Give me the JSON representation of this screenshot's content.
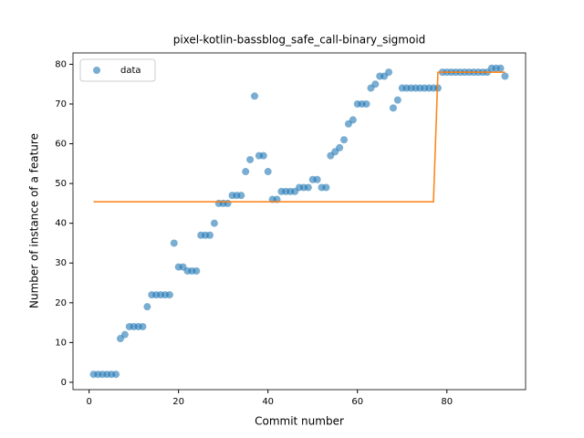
{
  "chart_data": {
    "type": "scatter",
    "title": "pixel-kotlin-bassblog_safe_call-binary_sigmoid",
    "x_label": "Commit number",
    "y_label": "Number of instance of a feature",
    "xlim": [
      -3.6,
      97.6
    ],
    "ylim": [
      -1.85,
      82.85
    ],
    "xticks": [
      0,
      20,
      40,
      60,
      80
    ],
    "yticks": [
      0,
      10,
      20,
      30,
      40,
      50,
      60,
      70,
      80
    ],
    "legend": "upper left",
    "series": [
      {
        "name": "data",
        "type": "scatter",
        "color": "#1f77b4",
        "x": [
          1,
          2,
          3,
          4,
          5,
          6,
          7,
          8,
          9,
          10,
          11,
          12,
          13,
          14,
          15,
          16,
          17,
          18,
          19,
          20,
          21,
          22,
          23,
          24,
          25,
          26,
          27,
          28,
          29,
          30,
          31,
          32,
          33,
          34,
          35,
          36,
          37,
          38,
          39,
          40,
          41,
          42,
          43,
          44,
          45,
          46,
          47,
          48,
          49,
          50,
          51,
          52,
          53,
          54,
          55,
          56,
          57,
          58,
          59,
          60,
          61,
          62,
          63,
          64,
          65,
          66,
          67,
          68,
          69,
          70,
          71,
          72,
          73,
          74,
          75,
          76,
          77,
          78,
          79,
          80,
          81,
          82,
          83,
          84,
          85,
          86,
          87,
          88,
          89,
          90,
          91,
          92,
          93
        ],
        "values": [
          2,
          2,
          2,
          2,
          2,
          2,
          11,
          12,
          14,
          14,
          14,
          14,
          19,
          22,
          22,
          22,
          22,
          22,
          35,
          29,
          29,
          28,
          28,
          28,
          37,
          37,
          37,
          40,
          45,
          45,
          45,
          47,
          47,
          47,
          53,
          56,
          72,
          57,
          57,
          53,
          46,
          46,
          48,
          48,
          48,
          48,
          49,
          49,
          49,
          51,
          51,
          49,
          49,
          57,
          58,
          59,
          61,
          65,
          66,
          70,
          70,
          70,
          74,
          75,
          77,
          77,
          78,
          69,
          71,
          74,
          74,
          74,
          74,
          74,
          74,
          74,
          74,
          74,
          78,
          78,
          78,
          78,
          78,
          78,
          78,
          78,
          78,
          78,
          78,
          79,
          79,
          79,
          77
        ]
      },
      {
        "type": "line",
        "color": "#ff7f0e",
        "x": [
          1,
          77,
          78,
          93
        ],
        "values": [
          45.4,
          45.4,
          78,
          78
        ]
      }
    ]
  }
}
